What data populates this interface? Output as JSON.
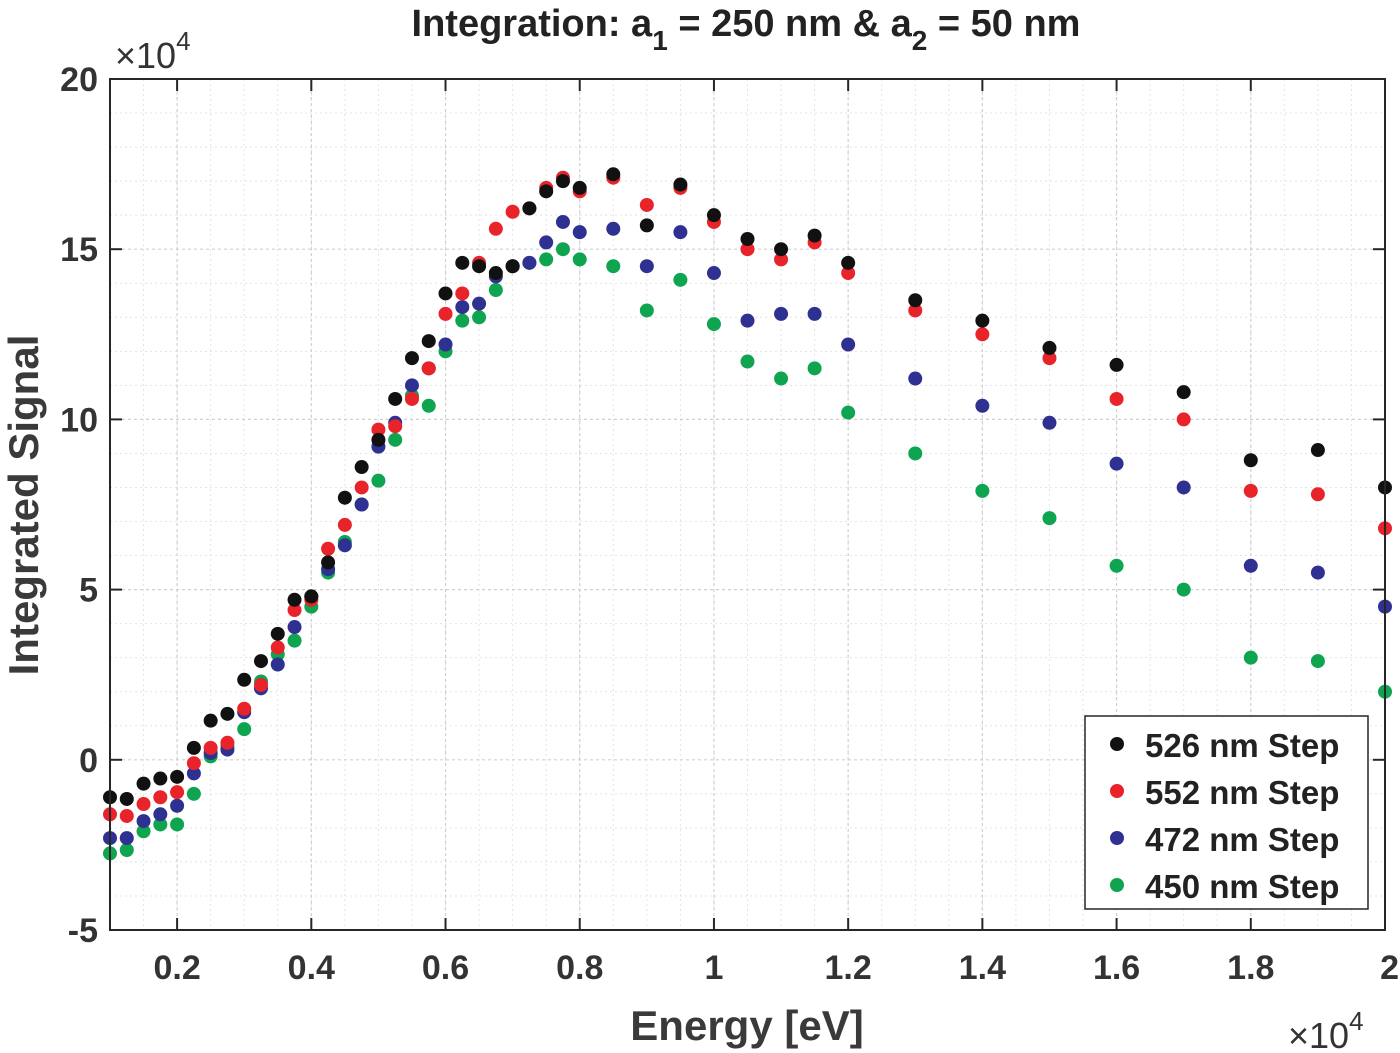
{
  "chart_data": {
    "type": "scatter",
    "title": {
      "prefix": "Integration: a",
      "sub1": "1",
      "middle": " = 250 nm & a",
      "sub2": "2",
      "suffix": " = 50 nm"
    },
    "xlabel": "Energy [eV]",
    "ylabel": "Integrated Signal",
    "x_exponent": "×10",
    "x_exponent_power": "4",
    "y_exponent": "×10",
    "y_exponent_power": "4",
    "xlim": [
      0.1,
      2.0
    ],
    "ylim": [
      -5,
      20
    ],
    "x_ticks": [
      0.2,
      0.4,
      0.6,
      0.8,
      1.0,
      1.2,
      1.4,
      1.6,
      1.8,
      2.0
    ],
    "x_tick_labels": [
      "0.2",
      "0.4",
      "0.6",
      "0.8",
      "1",
      "1.2",
      "1.4",
      "1.6",
      "1.8",
      "2"
    ],
    "y_ticks": [
      -5,
      0,
      5,
      10,
      15,
      20
    ],
    "y_tick_labels": [
      "-5",
      "0",
      "5",
      "10",
      "15",
      "20"
    ],
    "grid": true,
    "legend_position": "bottom-right",
    "x": [
      0.1,
      0.125,
      0.15,
      0.175,
      0.2,
      0.225,
      0.25,
      0.275,
      0.3,
      0.325,
      0.35,
      0.375,
      0.4,
      0.425,
      0.45,
      0.475,
      0.5,
      0.525,
      0.55,
      0.575,
      0.6,
      0.625,
      0.65,
      0.675,
      0.7,
      0.725,
      0.75,
      0.775,
      0.8,
      0.85,
      0.9,
      0.95,
      1.0,
      1.05,
      1.1,
      1.15,
      1.2,
      1.3,
      1.4,
      1.5,
      1.6,
      1.7,
      1.8,
      1.9,
      2.0
    ],
    "series": [
      {
        "name": "526 nm Step",
        "color": "#111111",
        "values": [
          -1.1,
          -1.15,
          -0.7,
          -0.55,
          -0.5,
          0.35,
          1.15,
          1.35,
          2.35,
          2.9,
          3.7,
          4.7,
          4.8,
          5.8,
          7.7,
          8.6,
          9.4,
          10.6,
          11.8,
          12.3,
          13.7,
          14.6,
          14.5,
          14.3,
          14.5,
          16.2,
          16.7,
          17.0,
          16.8,
          17.2,
          15.7,
          16.9,
          16.0,
          15.3,
          15.0,
          15.4,
          14.6,
          13.5,
          12.9,
          12.1,
          11.6,
          10.8,
          8.8,
          9.1,
          8.0
        ]
      },
      {
        "name": "552 nm Step",
        "color": "#e8232a",
        "values": [
          -1.6,
          -1.65,
          -1.3,
          -1.1,
          -0.95,
          -0.1,
          0.35,
          0.5,
          1.5,
          2.2,
          3.3,
          4.4,
          4.7,
          6.2,
          6.9,
          8.0,
          9.7,
          9.8,
          10.6,
          11.5,
          13.1,
          13.7,
          14.6,
          15.6,
          16.1,
          16.2,
          16.8,
          17.1,
          16.7,
          17.1,
          16.3,
          16.8,
          15.8,
          15.0,
          14.7,
          15.2,
          14.3,
          13.2,
          12.5,
          11.8,
          10.6,
          10.0,
          7.9,
          7.8,
          6.8
        ]
      },
      {
        "name": "472 nm Step",
        "color": "#2e3192",
        "values": [
          -2.3,
          -2.3,
          -1.8,
          -1.6,
          -1.35,
          -0.4,
          0.2,
          0.3,
          1.4,
          2.1,
          2.8,
          3.9,
          4.8,
          5.6,
          6.3,
          7.5,
          9.2,
          9.9,
          11.0,
          11.5,
          12.2,
          13.3,
          13.4,
          14.2,
          14.5,
          14.6,
          15.2,
          15.8,
          15.5,
          15.6,
          14.5,
          15.5,
          14.3,
          12.9,
          13.1,
          13.1,
          12.2,
          11.2,
          10.4,
          9.9,
          8.7,
          8.0,
          5.7,
          5.5,
          4.5
        ]
      },
      {
        "name": "450 nm Step",
        "color": "#0ea450",
        "values": [
          -2.75,
          -2.65,
          -2.1,
          -1.9,
          -1.9,
          -1.0,
          0.1,
          0.4,
          0.9,
          2.3,
          3.1,
          3.5,
          4.5,
          5.5,
          6.4,
          7.5,
          8.2,
          9.4,
          10.7,
          10.4,
          12.0,
          12.9,
          13.0,
          13.8,
          14.5,
          14.6,
          14.7,
          15.0,
          14.7,
          14.5,
          13.2,
          14.1,
          12.8,
          11.7,
          11.2,
          11.5,
          10.2,
          9.0,
          7.9,
          7.1,
          5.7,
          5.0,
          3.0,
          2.9,
          2.0
        ]
      }
    ]
  }
}
